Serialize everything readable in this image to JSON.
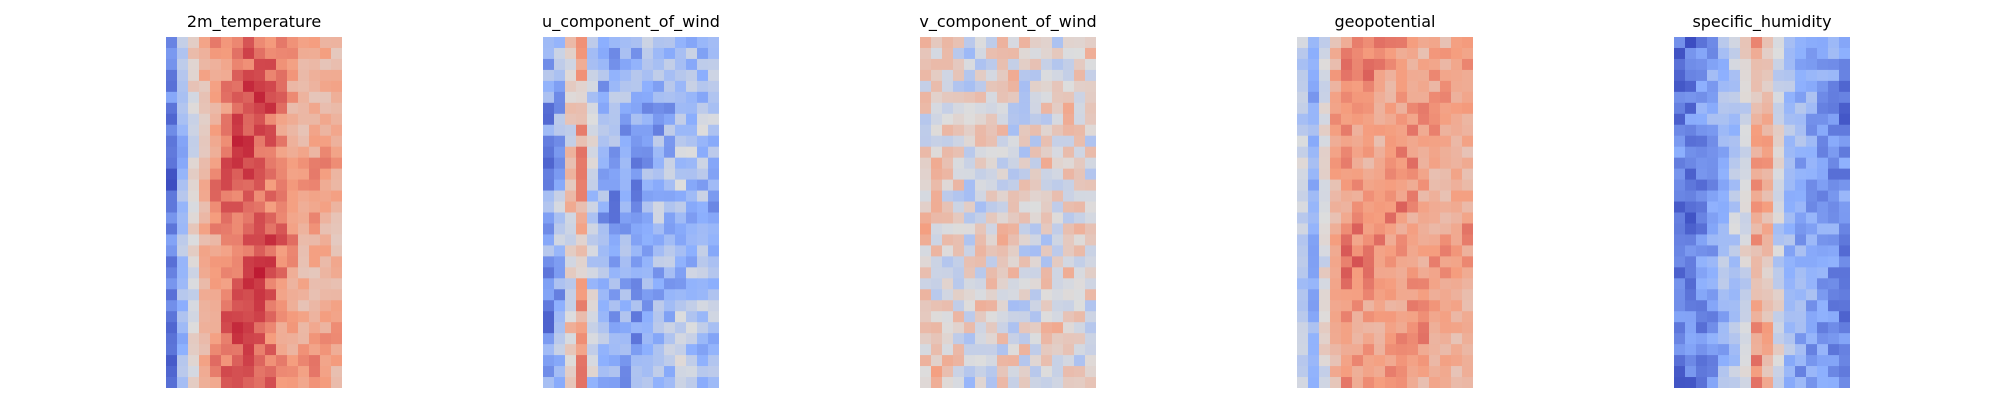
{
  "chart_data": [
    {
      "type": "heatmap",
      "title": "2m_temperature",
      "grid": false,
      "colormap": "coolwarm",
      "x": [
        0,
        1,
        2,
        3,
        4,
        5,
        6,
        7,
        8,
        9,
        10,
        11,
        12,
        13,
        14,
        15
      ],
      "y": [
        0,
        1,
        2,
        3,
        4,
        5,
        6,
        7,
        8,
        9,
        10,
        11,
        12,
        13,
        14,
        15,
        16,
        17,
        18,
        19,
        20,
        21,
        22,
        23,
        24,
        25,
        26,
        27,
        28,
        29,
        30,
        31
      ],
      "column_profile": [
        0.12,
        0.32,
        0.52,
        0.66,
        0.74,
        0.8,
        0.84,
        0.86,
        0.85,
        0.83,
        0.78,
        0.72,
        0.7,
        0.7,
        0.7,
        0.68
      ],
      "noise": 0.08
    },
    {
      "type": "heatmap",
      "title": "u_component_of_wind",
      "grid": false,
      "colormap": "coolwarm",
      "x": [
        0,
        1,
        2,
        3,
        4,
        5,
        6,
        7,
        8,
        9,
        10,
        11,
        12,
        13,
        14,
        15
      ],
      "y": [
        0,
        1,
        2,
        3,
        4,
        5,
        6,
        7,
        8,
        9,
        10,
        11,
        12,
        13,
        14,
        15,
        16,
        17,
        18,
        19,
        20,
        21,
        22,
        23,
        24,
        25,
        26,
        27,
        28,
        29,
        30,
        31
      ],
      "column_profile": [
        0.22,
        0.3,
        0.55,
        0.68,
        0.4,
        0.3,
        0.26,
        0.25,
        0.26,
        0.28,
        0.3,
        0.32,
        0.34,
        0.35,
        0.34,
        0.32
      ],
      "noise": 0.14
    },
    {
      "type": "heatmap",
      "title": "v_component_of_wind",
      "grid": false,
      "colormap": "coolwarm",
      "x": [
        0,
        1,
        2,
        3,
        4,
        5,
        6,
        7,
        8,
        9,
        10,
        11,
        12,
        13,
        14,
        15
      ],
      "y": [
        0,
        1,
        2,
        3,
        4,
        5,
        6,
        7,
        8,
        9,
        10,
        11,
        12,
        13,
        14,
        15,
        16,
        17,
        18,
        19,
        20,
        21,
        22,
        23,
        24,
        25,
        26,
        27,
        28,
        29,
        30,
        31
      ],
      "column_profile": [
        0.56,
        0.55,
        0.52,
        0.5,
        0.48,
        0.5,
        0.52,
        0.54,
        0.52,
        0.5,
        0.5,
        0.52,
        0.54,
        0.55,
        0.54,
        0.52
      ],
      "noise": 0.16
    },
    {
      "type": "heatmap",
      "title": "geopotential",
      "grid": false,
      "colormap": "coolwarm",
      "x": [
        0,
        1,
        2,
        3,
        4,
        5,
        6,
        7,
        8,
        9,
        10,
        11,
        12,
        13,
        14,
        15
      ],
      "y": [
        0,
        1,
        2,
        3,
        4,
        5,
        6,
        7,
        8,
        9,
        10,
        11,
        12,
        13,
        14,
        15,
        16,
        17,
        18,
        19,
        20,
        21,
        22,
        23,
        24,
        25,
        26,
        27,
        28,
        29,
        30,
        31
      ],
      "column_profile": [
        0.42,
        0.26,
        0.5,
        0.7,
        0.77,
        0.76,
        0.74,
        0.73,
        0.74,
        0.75,
        0.74,
        0.72,
        0.71,
        0.7,
        0.7,
        0.7
      ],
      "noise": 0.08
    },
    {
      "type": "heatmap",
      "title": "specific_humidity",
      "grid": false,
      "colormap": "coolwarm",
      "x": [
        0,
        1,
        2,
        3,
        4,
        5,
        6,
        7,
        8,
        9,
        10,
        11,
        12,
        13,
        14,
        15
      ],
      "y": [
        0,
        1,
        2,
        3,
        4,
        5,
        6,
        7,
        8,
        9,
        10,
        11,
        12,
        13,
        14,
        15,
        16,
        17,
        18,
        19,
        20,
        21,
        22,
        23,
        24,
        25,
        26,
        27,
        28,
        29,
        30,
        31
      ],
      "column_profile": [
        0.12,
        0.12,
        0.16,
        0.22,
        0.3,
        0.36,
        0.48,
        0.7,
        0.66,
        0.46,
        0.32,
        0.26,
        0.24,
        0.22,
        0.2,
        0.16
      ],
      "noise": 0.1
    }
  ]
}
